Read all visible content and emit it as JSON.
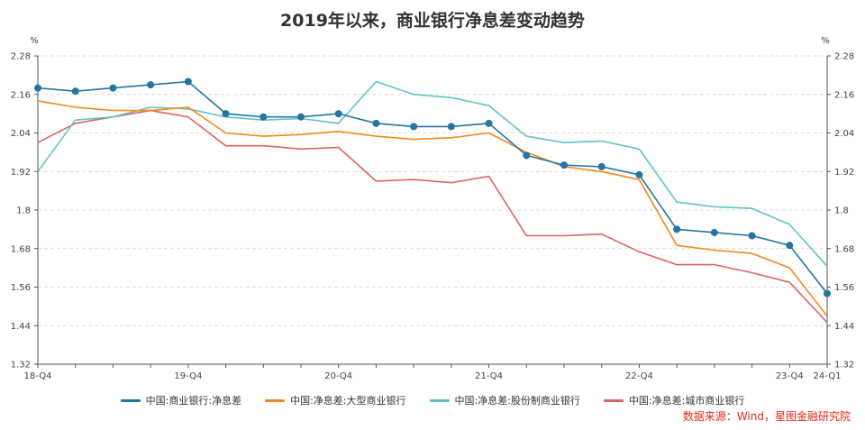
{
  "chart_data": {
    "type": "line",
    "title": "2019年以来，商业银行净息差变动趋势",
    "ylabel_left": "%",
    "ylabel_right": "%",
    "ylim": [
      1.32,
      2.28
    ],
    "yticks": [
      "2.28",
      "2.16",
      "2.04",
      "1.92",
      "1.8",
      "1.68",
      "1.56",
      "1.44",
      "1.32"
    ],
    "categories": [
      "18-Q4",
      "19-Q1",
      "19-Q2",
      "19-Q3",
      "19-Q4",
      "20-Q1",
      "20-Q2",
      "20-Q3",
      "20-Q4",
      "21-Q1",
      "21-Q2",
      "21-Q3",
      "21-Q4",
      "22-Q1",
      "22-Q2",
      "22-Q3",
      "22-Q4",
      "23-Q1",
      "23-Q2",
      "23-Q3",
      "23-Q4",
      "24-Q1"
    ],
    "x_tick_labels": [
      {
        "index": 0,
        "label": "18-Q4"
      },
      {
        "index": 4,
        "label": "19-Q4"
      },
      {
        "index": 8,
        "label": "20-Q4"
      },
      {
        "index": 12,
        "label": "21-Q4"
      },
      {
        "index": 16,
        "label": "22-Q4"
      },
      {
        "index": 20,
        "label": "23-Q4"
      },
      {
        "index": 21,
        "label": "24-Q1"
      }
    ],
    "series": [
      {
        "name": "中国:商业银行:净息差",
        "color": "#2474a4",
        "markers": true,
        "values": [
          2.18,
          2.17,
          2.18,
          2.19,
          2.2,
          2.1,
          2.09,
          2.09,
          2.1,
          2.07,
          2.06,
          2.06,
          2.07,
          1.97,
          1.94,
          1.935,
          1.91,
          1.74,
          1.73,
          1.72,
          1.69,
          1.54
        ]
      },
      {
        "name": "中国:净息差:大型商业银行",
        "color": "#f28a1e",
        "markers": false,
        "values": [
          2.14,
          2.12,
          2.11,
          2.11,
          2.12,
          2.04,
          2.03,
          2.035,
          2.045,
          2.03,
          2.02,
          2.025,
          2.04,
          1.98,
          1.935,
          1.92,
          1.895,
          1.69,
          1.675,
          1.665,
          1.62,
          1.47
        ]
      },
      {
        "name": "中国:净息差:股份制商业银行",
        "color": "#5ec4c4",
        "markers": false,
        "values": [
          1.92,
          2.08,
          2.09,
          2.12,
          2.115,
          2.09,
          2.08,
          2.085,
          2.07,
          2.2,
          2.16,
          2.15,
          2.125,
          2.03,
          2.01,
          2.015,
          1.99,
          1.825,
          1.81,
          1.805,
          1.755,
          1.625
        ]
      },
      {
        "name": "中国:净息差:城市商业银行",
        "color": "#e06262",
        "markers": false,
        "values": [
          2.01,
          2.07,
          2.09,
          2.11,
          2.09,
          2.0,
          2.0,
          1.99,
          1.995,
          1.89,
          1.895,
          1.885,
          1.905,
          1.72,
          1.72,
          1.725,
          1.67,
          1.63,
          1.63,
          1.605,
          1.575,
          1.45
        ]
      }
    ],
    "source": "数据来源：Wind，星图金融研究院"
  }
}
